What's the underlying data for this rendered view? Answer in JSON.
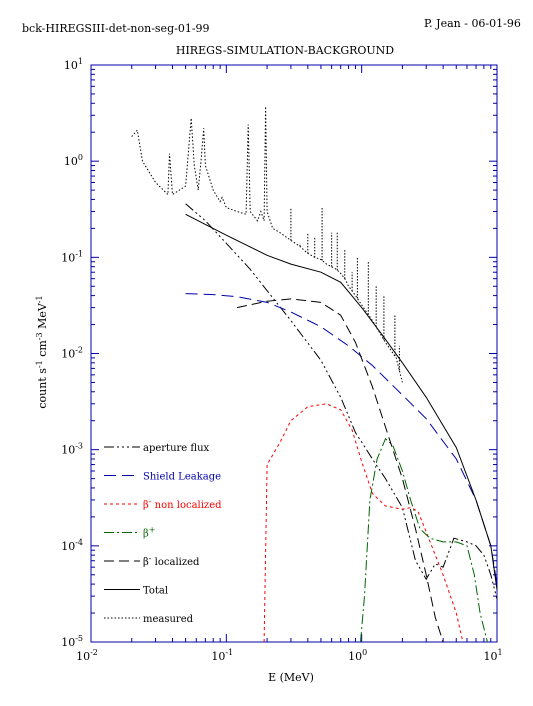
{
  "header": {
    "file_id": "bck-HIREGSIII-det-non-seg-01-99",
    "author_date": "P. Jean - 06-01-96"
  },
  "chart_data": {
    "type": "line",
    "title": "HIREGS-SIMULATION-BACKGROUND",
    "xlabel": "E (MeV)",
    "ylabel": "count s-1 cm-3 MeV-1",
    "xscale": "log",
    "yscale": "log",
    "xlim": [
      0.01,
      10
    ],
    "ylim": [
      1e-05,
      10
    ],
    "grid": false,
    "legend_position": "lower-left",
    "x_ticks": [
      {
        "value": 0.01,
        "base": "10",
        "exp": "-2"
      },
      {
        "value": 0.1,
        "base": "10",
        "exp": "-1"
      },
      {
        "value": 1,
        "base": "10",
        "exp": "0"
      },
      {
        "value": 10,
        "base": "10",
        "exp": "1"
      }
    ],
    "y_ticks": [
      {
        "value": 10,
        "base": "10",
        "exp": "1"
      },
      {
        "value": 1,
        "base": "10",
        "exp": "0"
      },
      {
        "value": 0.1,
        "base": "10",
        "exp": "-1"
      },
      {
        "value": 0.01,
        "base": "10",
        "exp": "-2"
      },
      {
        "value": 0.001,
        "base": "10",
        "exp": "-3"
      },
      {
        "value": 0.0001,
        "base": "10",
        "exp": "-4"
      },
      {
        "value": 1e-05,
        "base": "10",
        "exp": "-5"
      }
    ],
    "series": [
      {
        "name": "aperture flux",
        "color": "#000000",
        "dash": "10,3,2,3,2,3,2,3",
        "points": [
          [
            0.05,
            0.36
          ],
          [
            0.07,
            0.24
          ],
          [
            0.1,
            0.14
          ],
          [
            0.15,
            0.075
          ],
          [
            0.2,
            0.045
          ],
          [
            0.3,
            0.022
          ],
          [
            0.5,
            0.0085
          ],
          [
            0.7,
            0.0035
          ],
          [
            0.9,
            0.0015
          ],
          [
            1.0,
            0.0012
          ],
          [
            1.2,
            0.0008
          ],
          [
            1.5,
            0.0005
          ],
          [
            2.0,
            0.00025
          ],
          [
            2.5,
            7e-05
          ],
          [
            3.0,
            4.5e-05
          ],
          [
            3.5,
            6.5e-05
          ],
          [
            4.0,
            6e-05
          ],
          [
            4.8,
            0.00012
          ],
          [
            6.0,
            0.00011
          ],
          [
            7.0,
            0.0001
          ],
          [
            8.0,
            8e-05
          ],
          [
            9.0,
            5e-05
          ],
          [
            10.0,
            2.8e-05
          ]
        ]
      },
      {
        "name": "Shield Leakage",
        "color": "#0000aa",
        "dash": "12,6",
        "points": [
          [
            0.05,
            0.042
          ],
          [
            0.08,
            0.041
          ],
          [
            0.12,
            0.039
          ],
          [
            0.2,
            0.034
          ],
          [
            0.3,
            0.027
          ],
          [
            0.5,
            0.019
          ],
          [
            0.8,
            0.012
          ],
          [
            1.2,
            0.0075
          ],
          [
            2.0,
            0.0037
          ],
          [
            3.0,
            0.0021
          ],
          [
            5.0,
            0.0008
          ],
          [
            7.0,
            0.0003
          ],
          [
            9.0,
            0.0001
          ],
          [
            10.0,
            4e-05
          ]
        ]
      },
      {
        "name": "β- non localized",
        "color": "#ff0000",
        "dash": "3,3",
        "points": [
          [
            0.19,
            1e-05
          ],
          [
            0.2,
            0.0007
          ],
          [
            0.25,
            0.0012
          ],
          [
            0.3,
            0.002
          ],
          [
            0.4,
            0.0028
          ],
          [
            0.55,
            0.003
          ],
          [
            0.7,
            0.0026
          ],
          [
            0.85,
            0.0016
          ],
          [
            1.0,
            0.00075
          ],
          [
            1.2,
            0.00035
          ],
          [
            1.5,
            0.00026
          ],
          [
            2.0,
            0.00024
          ],
          [
            2.3,
            0.00025
          ],
          [
            2.6,
            0.00023
          ],
          [
            3.0,
            0.00014
          ],
          [
            3.5,
            8e-05
          ],
          [
            4.0,
            5e-05
          ],
          [
            5.0,
            2e-05
          ],
          [
            5.6,
            1e-05
          ]
        ]
      },
      {
        "name": "β+",
        "color": "#006600",
        "dash": "10,3,2,3",
        "points": [
          [
            0.98,
            1e-05
          ],
          [
            1.05,
            3e-05
          ],
          [
            1.15,
            0.0003
          ],
          [
            1.3,
            0.0008
          ],
          [
            1.5,
            0.0013
          ],
          [
            1.7,
            0.0011
          ],
          [
            2.0,
            0.0006
          ],
          [
            2.3,
            0.0003
          ],
          [
            2.7,
            0.00015
          ],
          [
            3.2,
            0.00012
          ],
          [
            4.0,
            0.00011
          ],
          [
            5.0,
            0.00011
          ],
          [
            6.0,
            0.0001
          ],
          [
            6.8,
            5e-05
          ],
          [
            7.5,
            2e-05
          ],
          [
            8.5,
            1e-05
          ]
        ]
      },
      {
        "name": "β- localized",
        "color": "#000000",
        "dash": "10,5",
        "points": [
          [
            0.12,
            0.03
          ],
          [
            0.2,
            0.035
          ],
          [
            0.3,
            0.037
          ],
          [
            0.5,
            0.034
          ],
          [
            0.7,
            0.025
          ],
          [
            0.9,
            0.013
          ],
          [
            1.2,
            0.0045
          ],
          [
            1.6,
            0.0013
          ],
          [
            2.0,
            0.0005
          ],
          [
            2.5,
            0.00015
          ],
          [
            3.0,
            5e-05
          ],
          [
            3.5,
            1.8e-05
          ],
          [
            4.0,
            1e-05
          ]
        ]
      },
      {
        "name": "Total",
        "color": "#000000",
        "dash": "",
        "points": [
          [
            0.05,
            0.28
          ],
          [
            0.1,
            0.17
          ],
          [
            0.2,
            0.105
          ],
          [
            0.3,
            0.085
          ],
          [
            0.5,
            0.07
          ],
          [
            0.7,
            0.055
          ],
          [
            1.0,
            0.03
          ],
          [
            1.5,
            0.014
          ],
          [
            2.0,
            0.008
          ],
          [
            3.0,
            0.0035
          ],
          [
            5.0,
            0.00105
          ],
          [
            7.0,
            0.0003
          ],
          [
            9.0,
            0.0001
          ],
          [
            10.0,
            3.5e-05
          ]
        ]
      },
      {
        "name": "measured",
        "color": "#000000",
        "dash": "1.5,2",
        "points": [
          [
            0.02,
            1.8
          ],
          [
            0.022,
            2.1
          ],
          [
            0.024,
            1.0
          ],
          [
            0.03,
            0.6
          ],
          [
            0.037,
            0.45
          ],
          [
            0.038,
            1.2
          ],
          [
            0.04,
            0.45
          ],
          [
            0.045,
            0.5
          ],
          [
            0.05,
            0.55
          ],
          [
            0.055,
            2.8
          ],
          [
            0.058,
            0.9
          ],
          [
            0.062,
            0.5
          ],
          [
            0.065,
            1.0
          ],
          [
            0.068,
            2.2
          ],
          [
            0.07,
            0.9
          ],
          [
            0.08,
            0.5
          ],
          [
            0.09,
            0.38
          ],
          [
            0.093,
            0.42
          ],
          [
            0.1,
            0.33
          ],
          [
            0.12,
            0.3
          ],
          [
            0.14,
            0.28
          ],
          [
            0.145,
            2.4
          ],
          [
            0.15,
            0.3
          ],
          [
            0.17,
            0.24
          ],
          [
            0.18,
            0.3
          ],
          [
            0.19,
            0.24
          ],
          [
            0.195,
            3.7
          ],
          [
            0.2,
            0.3
          ],
          [
            0.22,
            0.2
          ],
          [
            0.25,
            0.18
          ],
          [
            0.3,
            0.15
          ],
          [
            0.35,
            0.13
          ],
          [
            0.4,
            0.11
          ],
          [
            0.45,
            0.1
          ],
          [
            0.5,
            0.095
          ],
          [
            0.55,
            0.085
          ],
          [
            0.6,
            0.08
          ],
          [
            0.65,
            0.075
          ],
          [
            0.7,
            0.068
          ],
          [
            0.75,
            0.06
          ],
          [
            0.8,
            0.05
          ],
          [
            0.9,
            0.04
          ],
          [
            1.0,
            0.032
          ],
          [
            1.2,
            0.022
          ],
          [
            1.5,
            0.013
          ],
          [
            1.8,
            0.009
          ],
          [
            2.0,
            0.005
          ]
        ]
      }
    ],
    "peaks": [
      {
        "x": 0.3,
        "top": 0.32,
        "color": "#000000"
      },
      {
        "x": 0.35,
        "top": 0.14,
        "color": "#000000"
      },
      {
        "x": 0.4,
        "top": 0.18,
        "color": "#000000"
      },
      {
        "x": 0.45,
        "top": 0.16,
        "color": "#000000"
      },
      {
        "x": 0.51,
        "top": 0.33,
        "color": "#000000"
      },
      {
        "x": 0.6,
        "top": 0.18,
        "color": "#000000"
      },
      {
        "x": 0.66,
        "top": 0.18,
        "color": "#000000"
      },
      {
        "x": 0.75,
        "top": 0.12,
        "color": "#000000"
      },
      {
        "x": 0.85,
        "top": 0.07,
        "color": "#000000"
      },
      {
        "x": 0.93,
        "top": 0.1,
        "color": "#000000"
      },
      {
        "x": 1.12,
        "top": 0.09,
        "color": "#000000"
      },
      {
        "x": 1.28,
        "top": 0.05,
        "color": "#000000"
      },
      {
        "x": 1.46,
        "top": 0.04,
        "color": "#000000"
      },
      {
        "x": 1.76,
        "top": 0.025,
        "color": "#000000"
      },
      {
        "x": 1.9,
        "top": 0.012,
        "color": "#000000"
      }
    ]
  }
}
